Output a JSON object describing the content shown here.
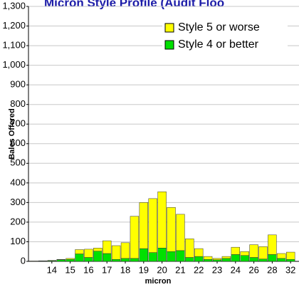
{
  "chart_data": {
    "type": "stacked_bar",
    "title": "Micron Style Profile (Audit Floo",
    "x_label": "micron",
    "y_label": "Bales Offered",
    "categories": [
      null,
      null,
      "14",
      null,
      "15",
      null,
      "16",
      null,
      "17",
      null,
      "18",
      null,
      "19",
      null,
      "20",
      null,
      "21",
      null,
      "22",
      null,
      "23",
      null,
      "24",
      null,
      "26",
      null,
      "28",
      null,
      "32"
    ],
    "series": [
      {
        "name": "Style 4 or better",
        "color": "#00e000",
        "values": [
          1,
          2,
          3,
          8,
          10,
          38,
          20,
          52,
          40,
          10,
          15,
          15,
          65,
          45,
          68,
          50,
          55,
          20,
          25,
          10,
          8,
          15,
          35,
          30,
          20,
          12,
          35,
          15,
          10
        ]
      },
      {
        "name": "Style 5 or worse",
        "color": "#ffff00",
        "values": [
          1,
          1,
          2,
          2,
          5,
          22,
          42,
          16,
          65,
          70,
          80,
          215,
          235,
          275,
          287,
          225,
          185,
          95,
          40,
          15,
          7,
          10,
          37,
          20,
          65,
          63,
          100,
          25,
          37
        ]
      }
    ],
    "ylim": [
      0,
      1300
    ],
    "yticks": [
      0,
      100,
      200,
      300,
      400,
      500,
      600,
      700,
      800,
      900,
      {
        "value": 1000,
        "label": "1,000"
      },
      {
        "value": 1100,
        "label": "1,100"
      },
      {
        "value": 1200,
        "label": "1,200"
      },
      {
        "value": 1300,
        "label": "1,300"
      }
    ],
    "grid": true,
    "legend": "top-right"
  }
}
